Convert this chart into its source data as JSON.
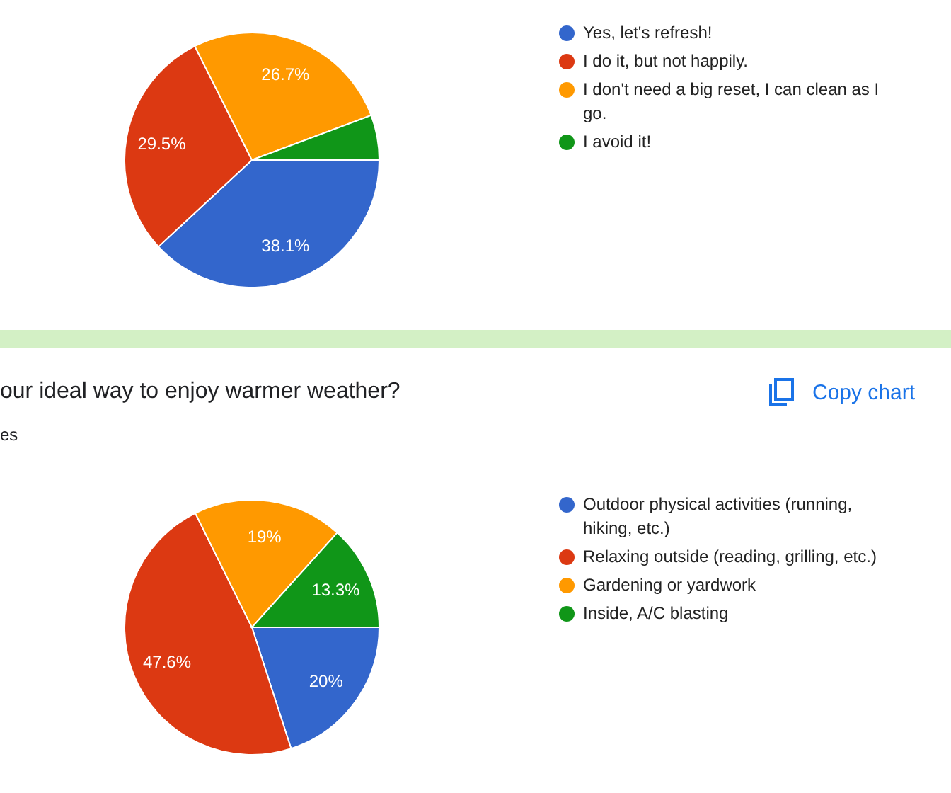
{
  "chart_data": [
    {
      "type": "pie",
      "categories": [
        "Yes, let's refresh!",
        "I do it, but not happily.",
        "I don't need a big reset, I can clean as I go.",
        "I avoid it!"
      ],
      "values": [
        38.1,
        29.5,
        26.7,
        5.7
      ],
      "colors": [
        "#3366cc",
        "#dc3912",
        "#ff9900",
        "#109618"
      ],
      "value_labels": [
        "38.1%",
        "29.5%",
        "26.7%",
        null
      ],
      "legend": "right"
    },
    {
      "type": "pie",
      "title": "our ideal way to enjoy warmer weather?",
      "subtitle": "es",
      "annotations": [
        "Copy chart"
      ],
      "categories": [
        "Outdoor physical activities (running, hiking, etc.)",
        "Relaxing outside (reading, grilling, etc.)",
        "Gardening or yardwork",
        "Inside, A/C blasting"
      ],
      "values": [
        20,
        47.6,
        19,
        13.3
      ],
      "colors": [
        "#3366cc",
        "#dc3912",
        "#ff9900",
        "#109618"
      ],
      "value_labels": [
        "20%",
        "47.6%",
        "19%",
        "13.3%"
      ],
      "legend": "right"
    }
  ]
}
